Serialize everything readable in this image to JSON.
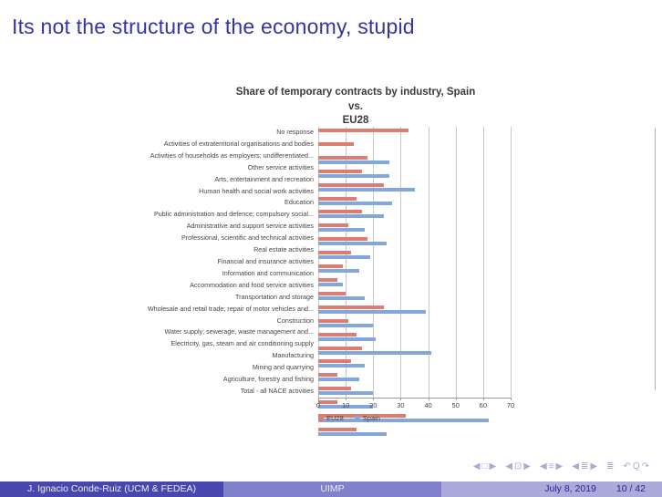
{
  "slide": {
    "title": "Its not the structure of the economy, stupid"
  },
  "chart_data": {
    "type": "bar",
    "orientation": "horizontal",
    "title": "Share of temporary contracts by industry, Spain vs. EU28",
    "title_lines": [
      "Share of temporary contracts by industry, Spain vs.",
      "EU28"
    ],
    "categories": [
      "No response",
      "Activities of extraterritorial organisations and bodies",
      "Activities of households as employers; undifferentiated...",
      "Other service activities",
      "Arts, entertainment and recreation",
      "Human health and social work activities",
      "Education",
      "Public administration and defence; compulsory social...",
      "Administrative and support service activities",
      "Professional, scientific and technical activities",
      "Real estate activities",
      "Financial and insurance activities",
      "Information and communication",
      "Accommodation and food service activities",
      "Transportation and storage",
      "Wholesale and retail trade; repair of motor vehicles and...",
      "Construction",
      "Water supply; sewerage, waste management and...",
      "Electricity, gas, steam and air conditioning supply",
      "Manufacturing",
      "Mining and quarrying",
      "Agriculture, forestry and fishing",
      "Total - all NACE activities"
    ],
    "series": [
      {
        "name": "EU28",
        "color": "#dd7c73",
        "values": [
          33,
          13,
          18,
          16,
          24,
          14,
          16,
          11,
          18,
          12,
          9,
          7,
          10,
          24,
          11,
          14,
          16,
          12,
          7,
          12,
          7,
          32,
          14
        ]
      },
      {
        "name": "Spain",
        "color": "#84a7db",
        "values": [
          0,
          0,
          26,
          26,
          35,
          27,
          24,
          17,
          25,
          19,
          15,
          9,
          17,
          39,
          20,
          21,
          41,
          17,
          15,
          20,
          20,
          62,
          25
        ]
      }
    ],
    "xlim": [
      0,
      70
    ],
    "x_ticks": [
      0,
      10,
      20,
      30,
      40,
      50,
      60,
      70
    ],
    "grid": "vertical-gridlines",
    "legend_position": "bottom-left"
  },
  "nav_symbols": [
    {
      "name": "slide-back-icon",
      "glyph": "◀"
    },
    {
      "name": "slide-icon",
      "glyph": "□"
    },
    {
      "name": "slide-forward-icon",
      "glyph": "▶"
    },
    {
      "name": "frame-back-icon",
      "glyph": "◀"
    },
    {
      "name": "frame-icon",
      "glyph": "⊡"
    },
    {
      "name": "frame-forward-icon",
      "glyph": "▶"
    },
    {
      "name": "section-back-icon",
      "glyph": "◀"
    },
    {
      "name": "section-icon",
      "glyph": "≡"
    },
    {
      "name": "section-forward-icon",
      "glyph": "▶"
    },
    {
      "name": "subsection-back-icon",
      "glyph": "◀"
    },
    {
      "name": "subsection-icon",
      "glyph": "≣"
    },
    {
      "name": "subsection-forward-icon",
      "glyph": "▶"
    },
    {
      "name": "appendix-icon",
      "glyph": "≣"
    },
    {
      "name": "history-back-icon",
      "glyph": "↶"
    },
    {
      "name": "search-icon",
      "glyph": "Q"
    },
    {
      "name": "history-forward-icon",
      "glyph": "↷"
    }
  ],
  "footer": {
    "author": "J. Ignacio Conde-Ruiz (UCM & FEDEA)",
    "venue": "UIMP",
    "date": "July 8, 2019",
    "page": "10 / 42"
  },
  "colors": {
    "title_blue": "#3434a6",
    "eu28_red": "#dd7c73",
    "spain_blue": "#84a7db",
    "footer_dark": "#4747ad",
    "footer_mid": "#8181cb",
    "footer_light": "#ababdb",
    "gridline": "#c9c9c9"
  }
}
